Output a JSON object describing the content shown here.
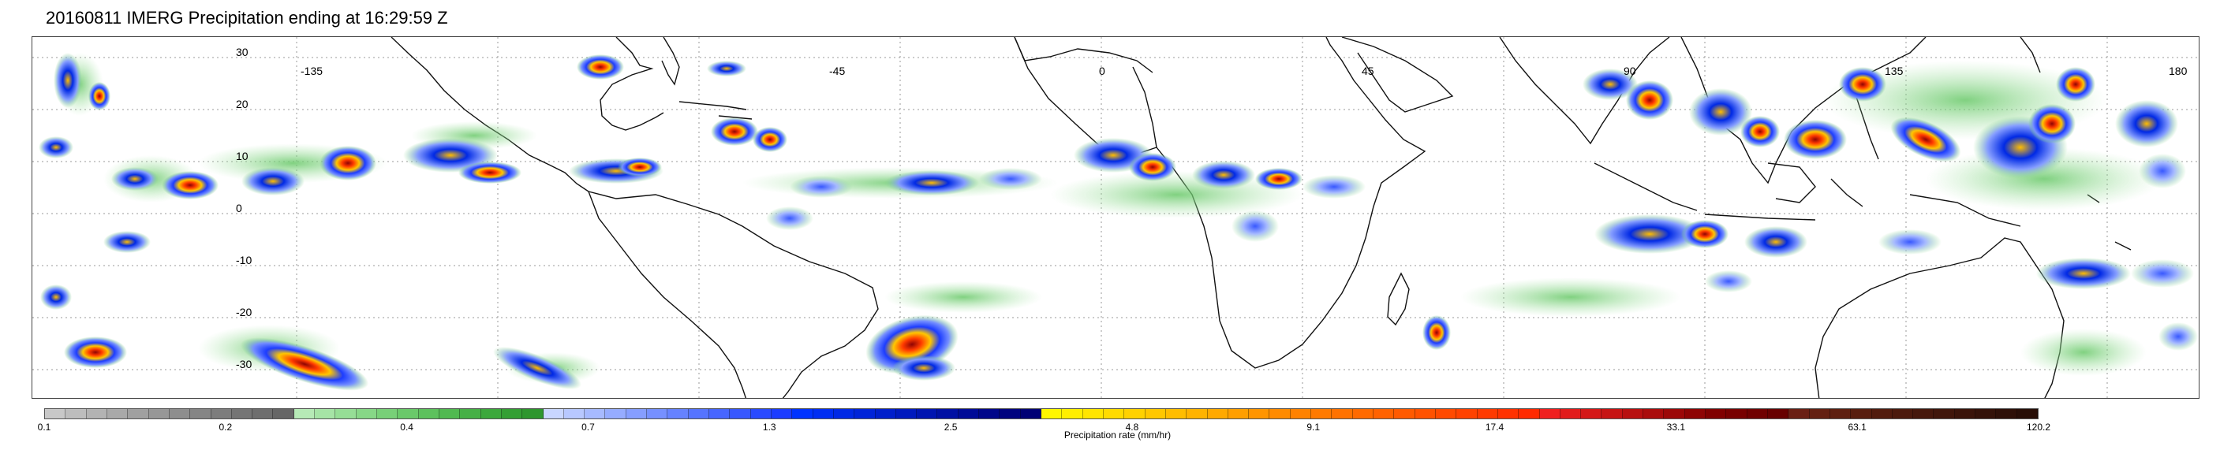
{
  "title": "20160811 IMERG Precipitation ending at 16:29:59 Z",
  "map": {
    "lon_labels": [
      "-135",
      "-45",
      "0",
      "45",
      "90",
      "135",
      "180"
    ],
    "lat_labels": [
      "30",
      "20",
      "10",
      "0",
      "-10",
      "-20",
      "-30"
    ],
    "graticule": "dotted",
    "features": [
      "coastlines",
      "precipitation-field"
    ]
  },
  "colorbar": {
    "label": "Precipitation rate (mm/hr)",
    "tick_labels": [
      "0.1",
      "0.2",
      "0.4",
      "0.7",
      "1.3",
      "2.5",
      "4.8",
      "9.1",
      "17.4",
      "33.1",
      "63.1",
      "120.2"
    ],
    "colors": [
      "#c8c8c8",
      "#bdbdbd",
      "#b3b3b3",
      "#a9a9a9",
      "#a0a0a0",
      "#979797",
      "#8e8e8e",
      "#858585",
      "#7d7d7d",
      "#757575",
      "#6e6e6e",
      "#666666",
      "#b6eab6",
      "#a6e4a6",
      "#96de96",
      "#87d787",
      "#78d078",
      "#6ac96a",
      "#5dc15d",
      "#51b951",
      "#46b046",
      "#3ca83c",
      "#349f34",
      "#2e962e",
      "#c9d6ff",
      "#b8c8ff",
      "#a7baff",
      "#96acff",
      "#869eff",
      "#7690ff",
      "#6682ff",
      "#5674ff",
      "#4766ff",
      "#3858ff",
      "#2a4aff",
      "#1c3cff",
      "#0033ff",
      "#002ef2",
      "#0029e5",
      "#0024d8",
      "#001fcb",
      "#001abe",
      "#0015b1",
      "#0010a4",
      "#000b97",
      "#00068a",
      "#00037f",
      "#000075",
      "#fff700",
      "#ffee00",
      "#ffe500",
      "#ffdb00",
      "#ffd100",
      "#ffc700",
      "#ffbd00",
      "#ffb300",
      "#ffa900",
      "#ff9f00",
      "#ff9500",
      "#ff8b00",
      "#ff8200",
      "#ff7a00",
      "#ff7200",
      "#ff6a00",
      "#ff6200",
      "#ff5a00",
      "#ff5200",
      "#ff4a00",
      "#ff4200",
      "#ff3a00",
      "#ff3200",
      "#ff2a00",
      "#f02020",
      "#e21c1c",
      "#d41818",
      "#c61414",
      "#b81010",
      "#aa0c0c",
      "#9c0808",
      "#8e0404",
      "#800000",
      "#780000",
      "#700000",
      "#680000",
      "#6a1f14",
      "#642012",
      "#5e1f10",
      "#581e0f",
      "#521c0e",
      "#4c1a0d",
      "#46180c",
      "#40160b",
      "#3a140a",
      "#341209",
      "#2e1008",
      "#280e07"
    ]
  }
}
